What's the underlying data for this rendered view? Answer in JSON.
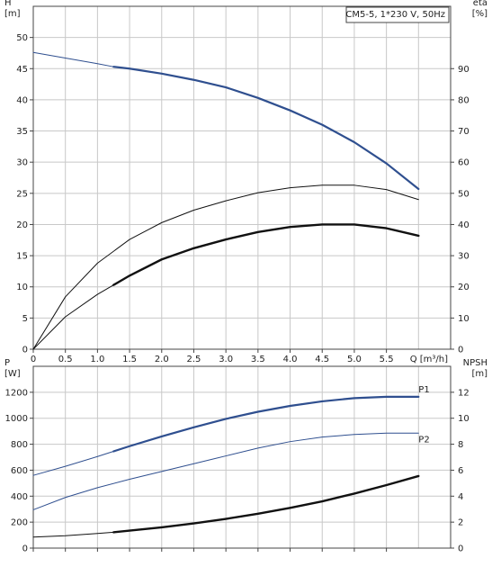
{
  "chart_data": [
    {
      "type": "line",
      "id": "upper",
      "title": "CM5-5, 1*230 V, 50Hz",
      "xlabel": "Q [m³/h]",
      "xlim": [
        0,
        6.5
      ],
      "xticks": [
        0,
        0.5,
        1.0,
        1.5,
        2.0,
        2.5,
        3.0,
        3.5,
        4.0,
        4.5,
        5.0,
        5.5
      ],
      "y_left": {
        "label_top": "H",
        "label_unit": "[m]",
        "ylim": [
          0,
          55
        ],
        "ticks": [
          0,
          5,
          10,
          15,
          20,
          25,
          30,
          35,
          40,
          45,
          50
        ]
      },
      "y_right": {
        "label_top": "eta",
        "label_unit": "[%]",
        "ylim": [
          0,
          110
        ],
        "ticks": [
          0,
          10,
          20,
          30,
          40,
          50,
          60,
          70,
          80,
          90
        ]
      },
      "grid": true,
      "series": [
        {
          "axis": "left",
          "color": "#2f4f8f",
          "width": 1,
          "x": [
            0,
            0.5,
            1.0,
            1.25
          ],
          "y": [
            47.6,
            46.7,
            45.8,
            45.3
          ]
        },
        {
          "axis": "left",
          "color": "#2f4f8f",
          "width": 2.2,
          "x": [
            1.25,
            1.5,
            2.0,
            2.5,
            3.0,
            3.5,
            4.0,
            4.5,
            5.0,
            5.5,
            6.0
          ],
          "y": [
            45.3,
            45.0,
            44.2,
            43.2,
            42.0,
            40.3,
            38.3,
            36.0,
            33.2,
            29.8,
            25.7
          ]
        },
        {
          "axis": "left",
          "color": "#111111",
          "width": 1,
          "x": [
            0,
            0.5,
            1.0,
            1.5,
            2.0,
            2.5,
            3.0,
            3.5,
            4.0,
            4.5,
            5.0,
            5.5,
            6.0
          ],
          "y": [
            0,
            8.4,
            13.8,
            17.6,
            20.3,
            22.3,
            23.8,
            25.1,
            25.9,
            26.3,
            26.3,
            25.6,
            24.0
          ]
        },
        {
          "axis": "left",
          "color": "#111111",
          "width": 1,
          "x": [
            0,
            0.5,
            1.0,
            1.25
          ],
          "y": [
            0,
            5.2,
            8.8,
            10.3
          ]
        },
        {
          "axis": "left",
          "color": "#111111",
          "width": 2.4,
          "x": [
            1.25,
            1.5,
            2.0,
            2.5,
            3.0,
            3.5,
            4.0,
            4.5,
            5.0,
            5.5,
            6.0
          ],
          "y": [
            10.3,
            11.8,
            14.4,
            16.2,
            17.6,
            18.8,
            19.6,
            20.0,
            20.0,
            19.4,
            18.2
          ]
        }
      ]
    },
    {
      "type": "line",
      "id": "lower",
      "xlim": [
        0,
        6.5
      ],
      "xticks": [
        0,
        0.5,
        1.0,
        1.5,
        2.0,
        2.5,
        3.0,
        3.5,
        4.0,
        4.5,
        5.0,
        5.5
      ],
      "y_left": {
        "label_top": "P",
        "label_unit": "[W]",
        "ylim": [
          0,
          1400
        ],
        "ticks": [
          0,
          200,
          400,
          600,
          800,
          1000,
          1200
        ]
      },
      "y_right": {
        "label_top": "NPSH",
        "label_unit": "[m]",
        "ylim": [
          0,
          14
        ],
        "ticks": [
          0,
          2,
          4,
          6,
          8,
          10,
          12
        ]
      },
      "grid": true,
      "series": [
        {
          "axis": "left",
          "color": "#2f4f8f",
          "width": 1,
          "x": [
            0,
            0.5,
            1.0,
            1.25
          ],
          "y": [
            560,
            630,
            705,
            745
          ]
        },
        {
          "axis": "left",
          "color": "#2f4f8f",
          "width": 2.2,
          "label": "P1",
          "x": [
            1.25,
            1.5,
            2.0,
            2.5,
            3.0,
            3.5,
            4.0,
            4.5,
            5.0,
            5.5,
            6.0
          ],
          "y": [
            745,
            785,
            860,
            930,
            995,
            1050,
            1095,
            1130,
            1155,
            1165,
            1165
          ]
        },
        {
          "axis": "left",
          "color": "#2f4f8f",
          "width": 1,
          "label": "P2",
          "x": [
            0,
            0.5,
            1.0,
            1.5,
            2.0,
            2.5,
            3.0,
            3.5,
            4.0,
            4.5,
            5.0,
            5.5,
            6.0
          ],
          "y": [
            295,
            390,
            465,
            530,
            590,
            650,
            710,
            770,
            820,
            855,
            875,
            885,
            885
          ]
        },
        {
          "axis": "right",
          "color": "#111111",
          "width": 1,
          "x": [
            0,
            0.5,
            1.0,
            1.25
          ],
          "y": [
            0.85,
            0.95,
            1.13,
            1.22
          ]
        },
        {
          "axis": "right",
          "color": "#111111",
          "width": 2.4,
          "x": [
            1.25,
            1.5,
            2.0,
            2.5,
            3.0,
            3.5,
            4.0,
            4.5,
            5.0,
            5.5,
            6.0
          ],
          "y": [
            1.22,
            1.35,
            1.6,
            1.9,
            2.25,
            2.65,
            3.1,
            3.6,
            4.2,
            4.85,
            5.55
          ]
        }
      ]
    }
  ]
}
